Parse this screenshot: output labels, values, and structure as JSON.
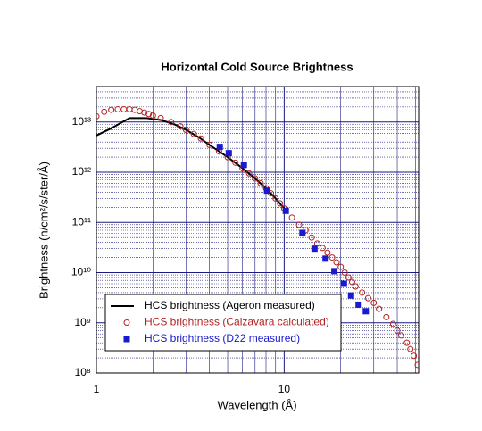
{
  "chart_data": {
    "type": "scatter",
    "title": "Horizontal Cold Source Brightness",
    "xlabel": "Wavelength (Å)",
    "ylabel": "Brightness (n/cm²/s/ster/Å)",
    "xscale": "log",
    "yscale": "log",
    "xlim": [
      1,
      52
    ],
    "ylim": [
      100000000,
      51000000000000
    ],
    "xticks": [
      1,
      10
    ],
    "yticks": [
      {
        "value": 100000000,
        "label": "10⁸"
      },
      {
        "value": 1000000000,
        "label": "10⁹"
      },
      {
        "value": 10000000000,
        "label": "10¹⁰"
      },
      {
        "value": 100000000000,
        "label": "10¹¹"
      },
      {
        "value": 1000000000000,
        "label": "10¹²"
      },
      {
        "value": 10000000000000,
        "label": "10¹³"
      }
    ],
    "grid": true,
    "grid_color": "#1a1a80",
    "legend": "lower left",
    "series": [
      {
        "name": "HCS brightness (Ageron measured)",
        "color": "#000000",
        "marker": "line",
        "x": [
          1,
          1.2,
          1.5,
          1.85,
          2.2,
          2.6,
          3,
          3.5,
          4,
          5,
          6,
          7,
          8,
          9,
          10
        ],
        "values": [
          5400000000000,
          7500000000000,
          12000000000000,
          12000000000000,
          11000000000000,
          9000000000000,
          7000000000000,
          5000000000000,
          3500000000000,
          2000000000000,
          1200000000000,
          750000000000,
          480000000000,
          300000000000,
          190000000000
        ]
      },
      {
        "name": "HCS brightness (Calzavara calculated)",
        "color": "#b22222",
        "marker": "circle",
        "x": [
          1,
          1.1,
          1.2,
          1.3,
          1.4,
          1.5,
          1.6,
          1.7,
          1.8,
          1.9,
          2,
          2.2,
          2.5,
          2.8,
          3,
          3.3,
          3.6,
          4,
          4.5,
          5,
          5.5,
          6,
          6.5,
          7,
          7.5,
          8,
          8.5,
          9,
          9.5,
          10,
          11,
          12,
          13,
          14,
          15,
          16,
          17,
          18,
          19,
          20,
          21,
          22,
          23,
          24,
          26,
          28,
          30,
          32,
          35,
          38,
          40,
          42,
          45,
          47,
          49,
          51.4
        ],
        "values": [
          13000000000000,
          16000000000000,
          17500000000000,
          18000000000000,
          18000000000000,
          18000000000000,
          17500000000000,
          16500000000000,
          15500000000000,
          14500000000000,
          13500000000000,
          12000000000000,
          10000000000000,
          8200000000000,
          7000000000000,
          5800000000000,
          4700000000000,
          3500000000000,
          2600000000000,
          2000000000000,
          1550000000000,
          1200000000000,
          950000000000,
          750000000000,
          600000000000,
          480000000000,
          380000000000,
          300000000000,
          240000000000,
          190000000000,
          125000000000,
          90000000000,
          70000000000,
          50000000000,
          38000000000,
          31000000000,
          25000000000,
          20000000000,
          16000000000,
          13000000000,
          10000000000,
          8000000000,
          6500000000,
          5300000000,
          4000000000,
          3100000000,
          2500000000,
          1900000000,
          1300000000,
          950000000,
          700000000,
          560000000,
          400000000,
          300000000,
          220000000,
          145000000
        ]
      },
      {
        "name": "HCS brightness (D22 measured)",
        "color": "#1a1acd",
        "marker": "square",
        "x": [
          4.54,
          5.07,
          6.1,
          8.1,
          10.2,
          12.5,
          14.5,
          16.6,
          18.5,
          20.8,
          22.7,
          24.9,
          27.2
        ],
        "values": [
          3200000000000,
          2400000000000,
          1400000000000,
          430000000000,
          170000000000,
          62000000000,
          30000000000,
          19000000000,
          10700000000,
          6000000000,
          3500000000,
          2300000000,
          1700000000
        ]
      }
    ]
  }
}
